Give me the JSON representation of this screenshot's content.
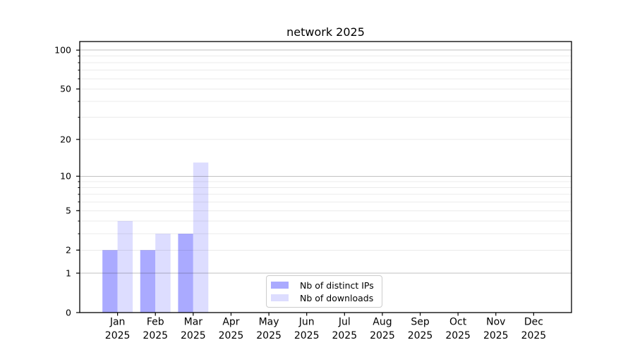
{
  "title": "network 2025",
  "chart_data": {
    "type": "bar",
    "title": "network 2025",
    "categories": [
      "Jan",
      "Feb",
      "Mar",
      "Apr",
      "May",
      "Jun",
      "Jul",
      "Aug",
      "Sep",
      "Oct",
      "Nov",
      "Dec"
    ],
    "category_year": "2025",
    "series": [
      {
        "name": "Nb of distinct IPs",
        "color": "#aaaaff",
        "values": [
          2,
          2,
          3,
          0,
          0,
          0,
          0,
          0,
          0,
          0,
          0,
          0
        ]
      },
      {
        "name": "Nb of downloads",
        "color": "#ddddff",
        "values": [
          4,
          3,
          13,
          0,
          0,
          0,
          0,
          0,
          0,
          0,
          0,
          0
        ]
      }
    ],
    "y_axis": {
      "scale": "log10(value+1)",
      "tick_labels": [
        0,
        1,
        2,
        5,
        10,
        20,
        50,
        100
      ],
      "major_gridlines": [
        1,
        10,
        100
      ],
      "minor_gridlines": [
        2,
        3,
        4,
        5,
        6,
        7,
        8,
        9,
        20,
        30,
        40,
        50,
        60,
        70,
        80,
        90
      ],
      "range": [
        0,
        116
      ]
    },
    "legend": {
      "position": "lower center",
      "items": [
        "Nb of distinct IPs",
        "Nb of downloads"
      ]
    },
    "colors": {
      "axis": "#000000",
      "grid_major": "rgba(0,0,0,0.24)",
      "grid_minor": "rgba(0,0,0,0.08)",
      "background": "#ffffff",
      "text": "#000000"
    }
  }
}
